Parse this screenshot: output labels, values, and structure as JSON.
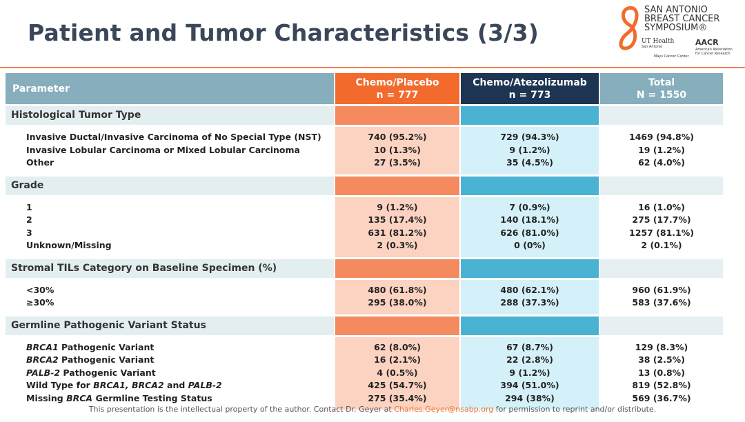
{
  "header": {
    "title": "Patient and Tumor Characteristics (3/3)",
    "logo": {
      "lines": [
        "SAN ANTONIO",
        "BREAST CANCER",
        "SYMPOSIUM®"
      ],
      "ut": [
        "UT Health",
        "San Antonio",
        "Mays Cancer Center"
      ],
      "aacr": [
        "AACR",
        "American Association",
        "for Cancer Research"
      ]
    }
  },
  "table": {
    "columns": [
      [
        "Parameter"
      ],
      [
        "Chemo/Placebo",
        "n = 777"
      ],
      [
        "Chemo/Atezolizumab",
        "n = 773"
      ],
      [
        "Total",
        "N = 1550"
      ]
    ],
    "sections": [
      {
        "title": "Histological Tumor Type",
        "rows": [
          {
            "label": [
              {
                "text": "Invasive Ductal/Invasive Carcinoma of No Special Type (NST)"
              }
            ],
            "cells": [
              "740 (95.2%)",
              "729 (94.3%)",
              "1469 (94.8%)"
            ]
          },
          {
            "label": [
              {
                "text": "Invasive Lobular Carcinoma or Mixed Lobular Carcinoma"
              }
            ],
            "cells": [
              "10 (1.3%)",
              "9 (1.2%)",
              "19 (1.2%)"
            ]
          },
          {
            "label": [
              {
                "text": "Other"
              }
            ],
            "cells": [
              "27 (3.5%)",
              "35 (4.5%)",
              "62 (4.0%)"
            ]
          }
        ]
      },
      {
        "title": "Grade",
        "rows": [
          {
            "label": [
              {
                "text": "1"
              }
            ],
            "cells": [
              "9 (1.2%)",
              "7 (0.9%)",
              "16 (1.0%)"
            ]
          },
          {
            "label": [
              {
                "text": "2"
              }
            ],
            "cells": [
              "135 (17.4%)",
              "140 (18.1%)",
              "275 (17.7%)"
            ]
          },
          {
            "label": [
              {
                "text": "3"
              }
            ],
            "cells": [
              "631 (81.2%)",
              "626 (81.0%)",
              "1257 (81.1%)"
            ]
          },
          {
            "label": [
              {
                "text": "Unknown/Missing"
              }
            ],
            "cells": [
              "2 (0.3%)",
              "0 (0%)",
              "2 (0.1%)"
            ]
          }
        ]
      },
      {
        "title": "Stromal TILs Category on Baseline Specimen (%)",
        "rows": [
          {
            "label": [
              {
                "text": "<30%"
              }
            ],
            "cells": [
              "480 (61.8%)",
              "480 (62.1%)",
              "960 (61.9%)"
            ]
          },
          {
            "label": [
              {
                "text": "≥30%"
              }
            ],
            "cells": [
              "295 (38.0%)",
              "288 (37.3%)",
              "583 (37.6%)"
            ]
          }
        ]
      },
      {
        "title": "Germline Pathogenic Variant Status",
        "rows": [
          {
            "label": [
              {
                "text": "BRCA1",
                "italic": true
              },
              {
                "text": " Pathogenic Variant"
              }
            ],
            "cells": [
              "62 (8.0%)",
              "67 (8.7%)",
              "129 (8.3%)"
            ]
          },
          {
            "label": [
              {
                "text": "BRCA2",
                "italic": true
              },
              {
                "text": " Pathogenic Variant"
              }
            ],
            "cells": [
              "16 (2.1%)",
              "22 (2.8%)",
              "38 (2.5%)"
            ]
          },
          {
            "label": [
              {
                "text": "PALB-2",
                "italic": true
              },
              {
                "text": " Pathogenic Variant"
              }
            ],
            "cells": [
              "4 (0.5%)",
              "9 (1.2%)",
              "13 (0.8%)"
            ]
          },
          {
            "label": [
              {
                "text": "Wild Type for "
              },
              {
                "text": "BRCA1, BRCA2",
                "italic": true
              },
              {
                "text": " and "
              },
              {
                "text": "PALB-2",
                "italic": true
              }
            ],
            "cells": [
              "425 (54.7%)",
              "394 (51.0%)",
              "819 (52.8%)"
            ]
          },
          {
            "label": [
              {
                "text": "Missing "
              },
              {
                "text": "BRCA",
                "italic": true
              },
              {
                "text": " Germline Testing Status"
              }
            ],
            "cells": [
              "275 (35.4%)",
              "294 (38%)",
              "569 (36.7%)"
            ]
          }
        ]
      }
    ]
  },
  "footer": {
    "text": [
      "This presentation is the intellectual property of the author.  Contact Dr. Geyer at ",
      "Charles.Geyer@nsabp.org",
      " for permission to reprint and/or distribute."
    ]
  }
}
